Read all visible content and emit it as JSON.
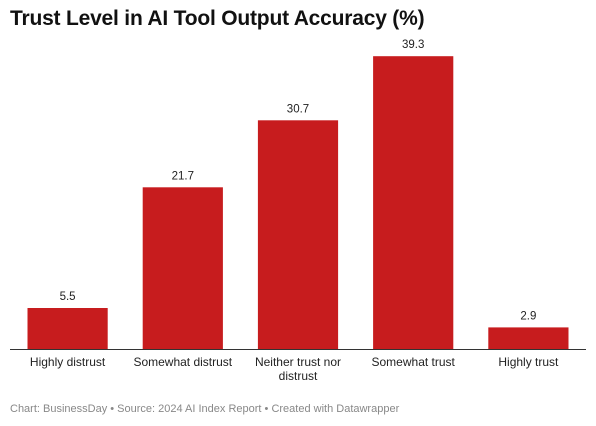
{
  "chart_data": {
    "type": "bar",
    "title": "Trust Level in AI Tool Output Accuracy (%)",
    "xlabel": "",
    "ylabel": "",
    "categories": [
      "Highly distrust",
      "Somewhat distrust",
      "Neither trust nor distrust",
      "Somewhat trust",
      "Highly trust"
    ],
    "values": [
      5.5,
      21.7,
      30.7,
      39.3,
      2.9
    ],
    "value_labels": [
      "5.5",
      "21.7",
      "30.7",
      "39.3",
      "2.9"
    ],
    "ylim": [
      0,
      40
    ],
    "grid": false,
    "legend": "none",
    "colors": {
      "bar": "#c71c1e",
      "baseline": "#333333"
    }
  },
  "footer": {
    "text": "Chart: BusinessDay • Source: 2024 AI Index Report • Created with Datawrapper"
  }
}
